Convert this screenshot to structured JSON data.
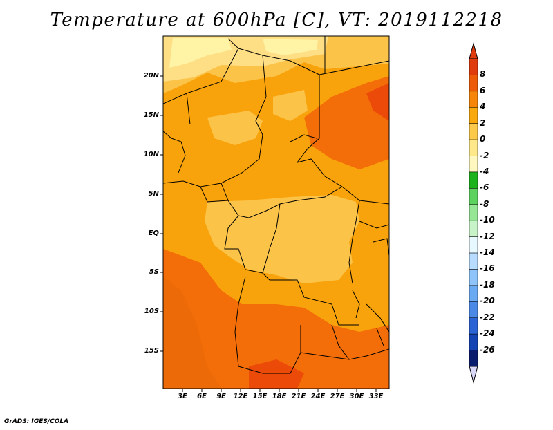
{
  "title": "Temperature at 600hPa [C], VT: 2019112218",
  "credit": "GrADS: IGES/COLA",
  "map": {
    "lat_labels": [
      "20N",
      "15N",
      "10N",
      "5N",
      "EQ",
      "5S",
      "10S",
      "15S"
    ],
    "lon_labels": [
      "3E",
      "6E",
      "9E",
      "12E",
      "15E",
      "18E",
      "21E",
      "24E",
      "27E",
      "30E",
      "33E"
    ],
    "region": "Central Africa",
    "field_colors": {
      "lt_neg2": "#fff3a6",
      "neg2_0": "#fedf85",
      "0_2": "#fcc349",
      "2_4": "#f9a30c",
      "4_6": "#f36d08",
      "6_8": "#ec4a08"
    }
  },
  "colorbar": {
    "labels": [
      "8",
      "6",
      "4",
      "2",
      "0",
      "-2",
      "-4",
      "-6",
      "-8",
      "-10",
      "-12",
      "-14",
      "-16",
      "-18",
      "-20",
      "-22",
      "-24",
      "-26"
    ],
    "colors": [
      "#e03b0d",
      "#ed5a08",
      "#f6850a",
      "#f9a80e",
      "#fcc94b",
      "#fee889",
      "#fff7c0",
      "#1cb21c",
      "#5ed25e",
      "#96e696",
      "#c8f2c8",
      "#e8f8ff",
      "#b8dcff",
      "#8ec4fa",
      "#6aaaf2",
      "#4a8ae6",
      "#2a64d4",
      "#1444b4",
      "#0a1c6e"
    ],
    "top_triangle_color": "#e03b0d",
    "bottom_triangle_color": "#dad8f8"
  }
}
